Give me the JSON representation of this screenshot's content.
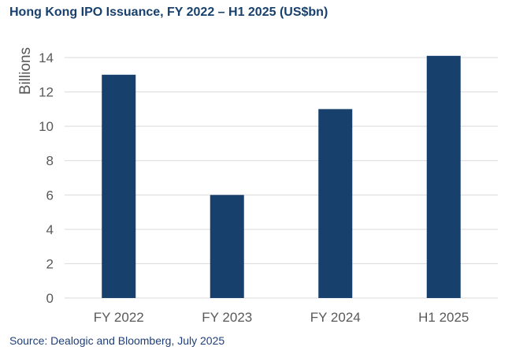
{
  "title": "Hong Kong IPO Issuance, FY 2022 – H1 2025 (US$bn)",
  "source": "Source: Dealogic and Bloomberg, July 2025",
  "colors": {
    "title": "#17406D",
    "bar": "#17406D",
    "grid": "#D9D9D9",
    "axis_text": "#595959",
    "source": "#1F3F7A"
  },
  "chart_data": {
    "type": "bar",
    "categories": [
      "FY 2022",
      "FY 2023",
      "FY 2024",
      "H1 2025"
    ],
    "values": [
      13,
      6,
      11,
      14.1
    ],
    "ylabel": "Billions",
    "xlabel": "",
    "ylim": [
      0,
      14
    ],
    "yticks": [
      0,
      2,
      4,
      6,
      8,
      10,
      12,
      14
    ],
    "grid": true,
    "legend": "none"
  }
}
